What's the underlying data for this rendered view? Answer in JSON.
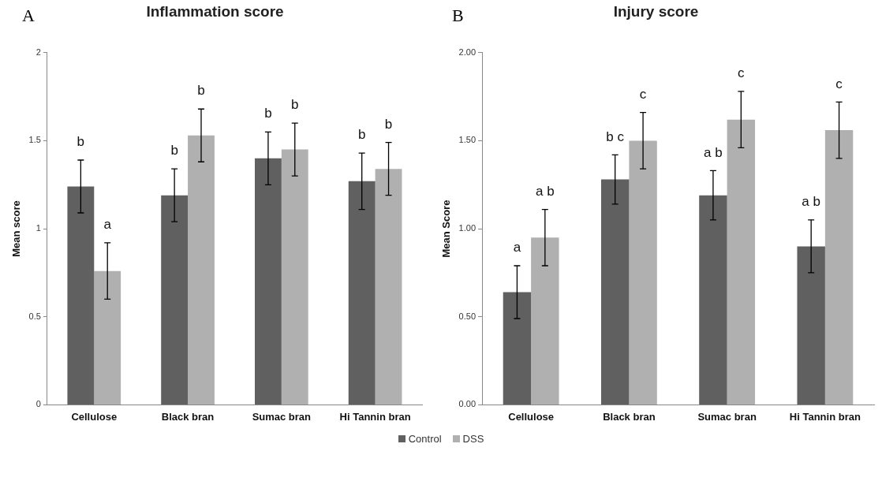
{
  "chart_data": [
    {
      "type": "bar",
      "title": "Inflammation score",
      "ylabel": "Mean score",
      "annotations": [
        "A"
      ],
      "categories": [
        "Cellulose",
        "Black bran",
        "Sumac bran",
        "Hi Tannin bran"
      ],
      "series": [
        {
          "name": "Control",
          "color": "#606060",
          "values": [
            1.24,
            1.19,
            1.4,
            1.27
          ],
          "errors": [
            0.15,
            0.15,
            0.15,
            0.16
          ],
          "value_labels": [
            "b",
            "b",
            "b",
            "b"
          ]
        },
        {
          "name": "DSS",
          "color": "#b0b0b0",
          "values": [
            0.76,
            1.53,
            1.45,
            1.34
          ],
          "errors": [
            0.16,
            0.15,
            0.15,
            0.15
          ],
          "value_labels": [
            "a",
            "b",
            "b",
            "b"
          ]
        }
      ],
      "ylim": [
        0,
        2
      ],
      "yticks": [
        0,
        0.5,
        1,
        1.5,
        2
      ],
      "grid": false,
      "legend": "bottom"
    },
    {
      "type": "bar",
      "title": "Injury score",
      "ylabel": "Mean Score",
      "annotations": [
        "B"
      ],
      "categories": [
        "Cellulose",
        "Black bran",
        "Sumac bran",
        "Hi Tannin bran"
      ],
      "series": [
        {
          "color": "#606060",
          "values": [
            0.64,
            1.28,
            1.19,
            0.9
          ],
          "errors": [
            0.15,
            0.14,
            0.14,
            0.15
          ],
          "value_labels": [
            "a",
            "b c",
            "a b",
            "a b"
          ]
        },
        {
          "color": "#b0b0b0",
          "values": [
            0.95,
            1.5,
            1.62,
            1.56
          ],
          "errors": [
            0.16,
            0.16,
            0.16,
            0.16
          ],
          "value_labels": [
            "a b",
            "c",
            "c",
            "c"
          ]
        }
      ],
      "ylim": [
        0,
        2
      ],
      "yticks": [
        {
          "value": 0,
          "label": "0.00"
        },
        {
          "value": 0.5,
          "label": "0.50"
        },
        {
          "value": 1,
          "label": "1.00"
        },
        {
          "value": 1.5,
          "label": "1.50"
        },
        {
          "value": 2,
          "label": "2.00"
        }
      ],
      "grid": false
    }
  ]
}
